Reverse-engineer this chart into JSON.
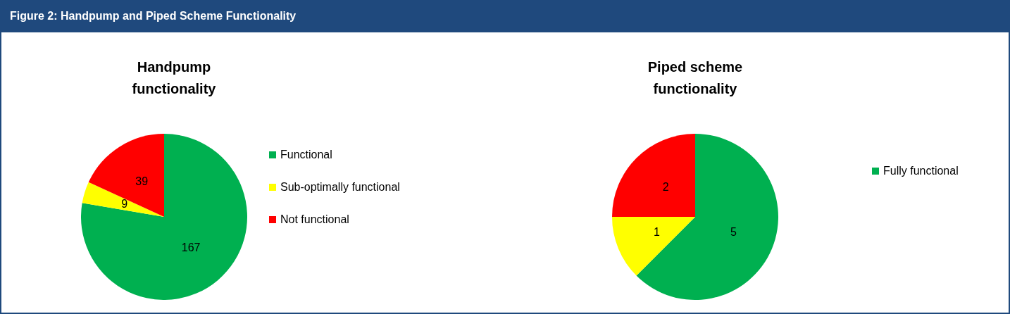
{
  "chart_data": [
    {
      "type": "other",
      "title": "Figure 2: Handpump and Piped Scheme Functionality"
    },
    {
      "type": "pie",
      "title": "Handpump functionality",
      "categories": [
        "Functional",
        "Sub-optimally functional",
        "Not functional"
      ],
      "values": [
        167,
        9,
        39
      ],
      "colors": [
        "#00b050",
        "#ffff00",
        "#ff0000"
      ],
      "data_labels": true,
      "legend": "right"
    },
    {
      "type": "pie",
      "title": "Piped scheme functionality",
      "categories": [
        "Fully functional",
        null,
        null
      ],
      "values": [
        5,
        1,
        2
      ],
      "colors": [
        "#00b050",
        "#ffff00",
        "#ff0000"
      ],
      "data_labels": true,
      "legend": "right"
    }
  ]
}
